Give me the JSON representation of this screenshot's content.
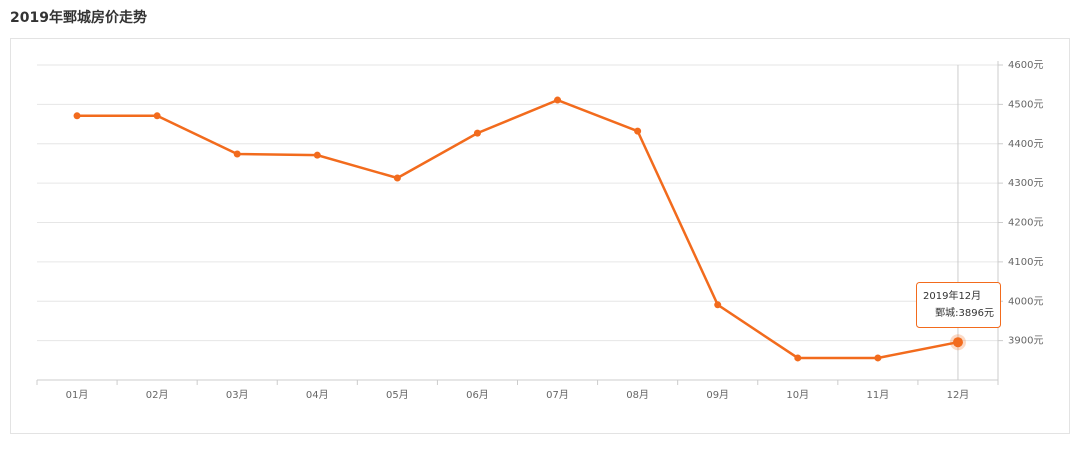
{
  "chart_data": {
    "type": "line",
    "title": "2019年鄄城房价走势",
    "categories": [
      "01月",
      "02月",
      "03月",
      "04月",
      "05月",
      "06月",
      "07月",
      "08月",
      "09月",
      "10月",
      "11月",
      "12月"
    ],
    "values": [
      4471,
      4471,
      4374,
      4371,
      4313,
      4427,
      4511,
      4432,
      3991,
      3856,
      3856,
      3896
    ],
    "color": "#f26b1d",
    "ylim": [
      3800,
      4600
    ],
    "yticks": [
      {
        "value": 3900,
        "label": "3900元"
      },
      {
        "value": 4000,
        "label": "4000元"
      },
      {
        "value": 4100,
        "label": "4100元"
      },
      {
        "value": 4200,
        "label": "4200元"
      },
      {
        "value": 4300,
        "label": "4300元"
      },
      {
        "value": 4400,
        "label": "4400元"
      },
      {
        "value": 4500,
        "label": "4500元"
      },
      {
        "value": 4600,
        "label": "4600元"
      }
    ],
    "grid": true,
    "tooltip": {
      "title": "2019年12月",
      "text": "鄄城:3896元"
    }
  }
}
